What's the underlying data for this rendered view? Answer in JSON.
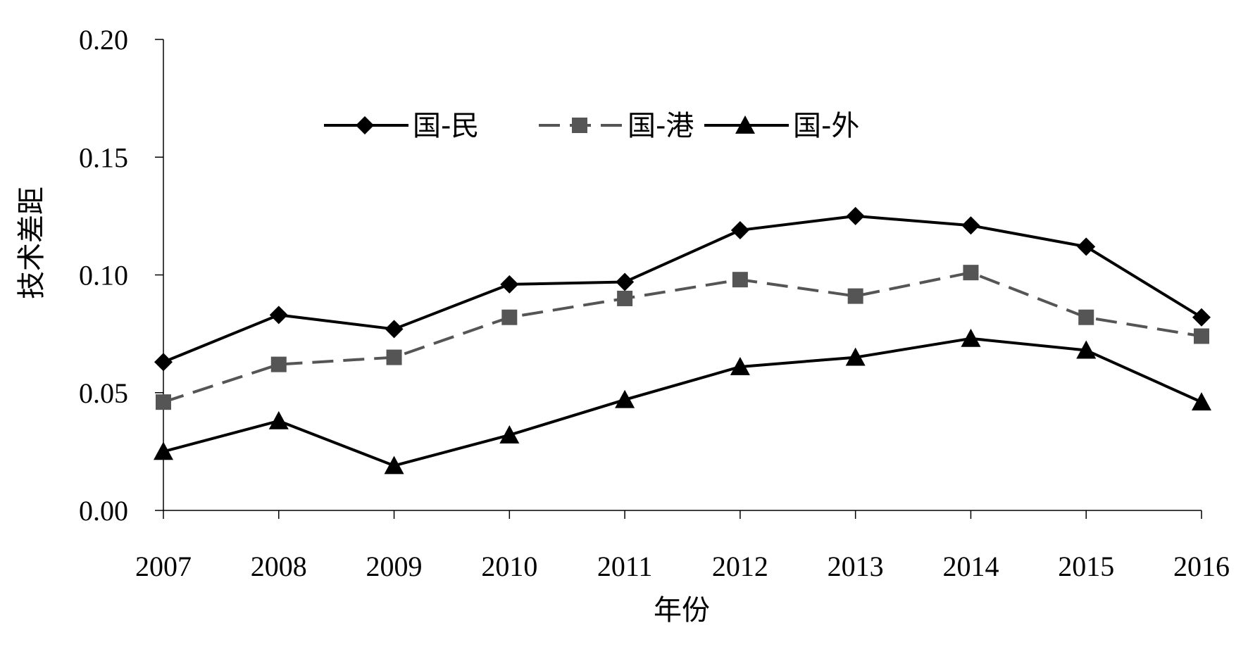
{
  "chart_data": {
    "type": "line",
    "title": "",
    "xlabel": "年份",
    "ylabel": "技术差距",
    "categories": [
      "2007",
      "2008",
      "2009",
      "2010",
      "2011",
      "2012",
      "2013",
      "2014",
      "2015",
      "2016"
    ],
    "ylim": [
      0,
      0.2
    ],
    "yticks": [
      "0.00",
      "0.05",
      "0.10",
      "0.15",
      "0.20"
    ],
    "grid": false,
    "legend_position": "top",
    "series": [
      {
        "name": "国-民",
        "marker": "diamond",
        "line": "solid",
        "color": "#000000",
        "values": [
          0.063,
          0.083,
          0.077,
          0.096,
          0.097,
          0.119,
          0.125,
          0.121,
          0.112,
          0.082
        ]
      },
      {
        "name": "国-港",
        "marker": "square",
        "line": "dashed",
        "color": "#555555",
        "values": [
          0.046,
          0.062,
          0.065,
          0.082,
          0.09,
          0.098,
          0.091,
          0.101,
          0.082,
          0.074
        ]
      },
      {
        "name": "国-外",
        "marker": "triangle",
        "line": "solid",
        "color": "#000000",
        "values": [
          0.025,
          0.038,
          0.019,
          0.032,
          0.047,
          0.061,
          0.065,
          0.073,
          0.068,
          0.046
        ]
      }
    ]
  }
}
